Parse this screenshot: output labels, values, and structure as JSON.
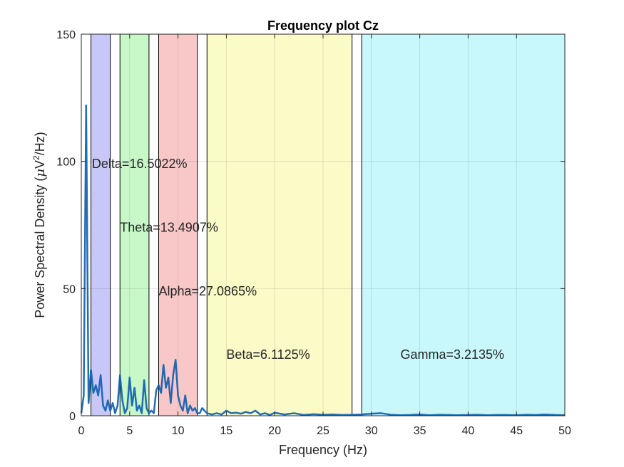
{
  "chart_data": {
    "type": "area",
    "title": "Frequency plot Cz",
    "xlabel": "Frequency (Hz)",
    "ylabel_parts": [
      "Power Spectral Density (",
      "μ",
      "V",
      "2",
      "/Hz)"
    ],
    "xlim": [
      0,
      50
    ],
    "ylim": [
      0,
      150
    ],
    "xticks": [
      0,
      5,
      10,
      15,
      20,
      25,
      30,
      35,
      40,
      45,
      50
    ],
    "yticks": [
      0,
      50,
      100,
      150
    ],
    "grid": true,
    "bands": [
      {
        "name": "Delta",
        "range": [
          1,
          3
        ],
        "color": "#c8c8f8",
        "label": "Delta=16.5022%",
        "label_x": 1.1,
        "label_y": 99
      },
      {
        "name": "Theta",
        "range": [
          4,
          7
        ],
        "color": "#c8f8c8",
        "label": "Theta=13.4907%",
        "label_x": 4.0,
        "label_y": 74
      },
      {
        "name": "Alpha",
        "range": [
          8,
          12
        ],
        "color": "#f8c8c8",
        "label": "Alpha=27.0865%",
        "label_x": 8.0,
        "label_y": 49
      },
      {
        "name": "Beta",
        "range": [
          13,
          28
        ],
        "color": "#fbfbc8",
        "label": "Beta=6.1125%",
        "label_x": 15.0,
        "label_y": 24
      },
      {
        "name": "Gamma",
        "range": [
          29,
          50
        ],
        "color": "#c8f8fb",
        "label": "Gamma=3.2135%",
        "label_x": 33.0,
        "label_y": 24
      }
    ],
    "series": [
      {
        "color": "#0f5fb0",
        "x": [
          0,
          0.25,
          0.5,
          0.75,
          1.0,
          1.25,
          1.5,
          1.75,
          2.0,
          2.25,
          2.5,
          2.75,
          3.0,
          3.25,
          3.5,
          3.75,
          4.0,
          4.25,
          4.5,
          4.75,
          5.0,
          5.25,
          5.5,
          5.75,
          6.0,
          6.25,
          6.5,
          6.75,
          7.0,
          7.25,
          7.5,
          7.75,
          8.0,
          8.25,
          8.5,
          8.75,
          9.0,
          9.25,
          9.5,
          9.75,
          10.0,
          10.25,
          10.5,
          10.75,
          11.0,
          11.25,
          11.5,
          11.75,
          12.0,
          12.25,
          12.5,
          12.75,
          13.0,
          13.5,
          14,
          14.5,
          15,
          15.5,
          16,
          16.5,
          17,
          17.5,
          18,
          18.5,
          19,
          19.5,
          20,
          21,
          22,
          23,
          24,
          25,
          26,
          27,
          28,
          29,
          30,
          31,
          32,
          33,
          34,
          35,
          36,
          37,
          38,
          39,
          40,
          41,
          42,
          43,
          44,
          45,
          46,
          47,
          48,
          49,
          50
        ],
        "y": [
          1,
          8,
          122,
          5,
          18,
          9,
          12,
          8,
          16,
          4,
          2,
          6,
          2,
          5,
          1,
          4,
          16,
          6,
          1,
          3,
          15,
          4,
          11,
          2,
          4,
          1,
          14,
          3,
          1,
          2,
          1,
          10,
          12,
          9,
          20,
          11,
          15,
          5,
          16,
          22,
          8,
          4,
          2,
          8,
          1,
          4,
          2,
          3,
          1,
          1,
          3,
          2,
          1,
          0.5,
          1,
          0.5,
          2,
          1,
          1.2,
          0.8,
          1.5,
          1,
          2,
          0.5,
          1,
          0.3,
          1.2,
          0.5,
          1,
          0.3,
          0.6,
          0.4,
          0.5,
          0.3,
          0.4,
          0.5,
          0.8,
          1,
          0.4,
          0.2,
          0.3,
          0.5,
          0.2,
          0.4,
          0.3,
          0.2,
          0.3,
          0.4,
          0.2,
          0.3,
          0.3,
          0.2,
          0.4,
          0.3,
          0.5,
          0.3,
          0.2
        ]
      }
    ]
  }
}
